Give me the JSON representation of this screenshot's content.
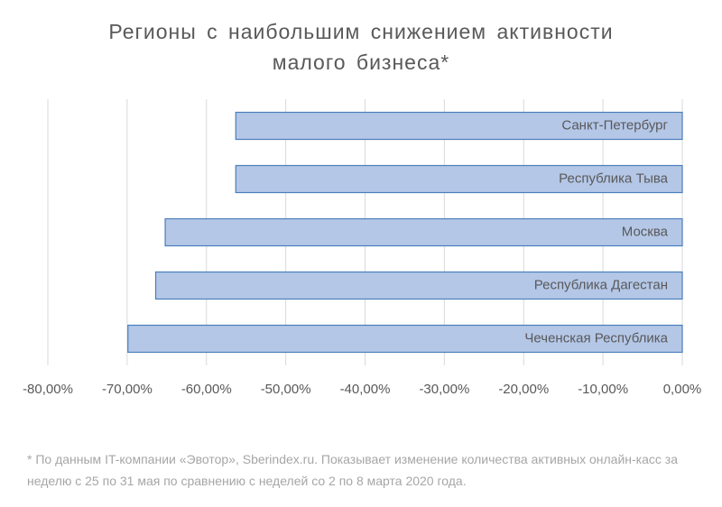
{
  "chart_data": {
    "type": "bar",
    "orientation": "horizontal",
    "title": "Регионы с наибольшим снижением активности малого бизнеса*",
    "categories": [
      "Санкт-Петербург",
      "Республика Тыва",
      "Москва",
      "Республика Дагестан",
      "Чеченская Республика"
    ],
    "values": [
      -56.3,
      -56.3,
      -65.2,
      -66.4,
      -69.9
    ],
    "color": "#b4c7e7",
    "edge_color": "#4a7ebb",
    "xlim": [
      -80,
      0
    ],
    "xticks": [
      {
        "value": -80,
        "label": "-80,00%"
      },
      {
        "value": -70,
        "label": "-70,00%"
      },
      {
        "value": -60,
        "label": "-60,00%"
      },
      {
        "value": -50,
        "label": "-50,00%"
      },
      {
        "value": -40,
        "label": "-40,00%"
      },
      {
        "value": -30,
        "label": "-30,00%"
      },
      {
        "value": -20,
        "label": "-20,00%"
      },
      {
        "value": -10,
        "label": "-10,00%"
      },
      {
        "value": 0,
        "label": "0,00%"
      }
    ],
    "grid": true,
    "footnote": "* По данным IT-компании «Эвотор», Sberindex.ru. Показывает изменение количества активных онлайн-касс за неделю с 25 по 31 мая по сравнению с неделей со 2 по 8 марта 2020 года."
  }
}
